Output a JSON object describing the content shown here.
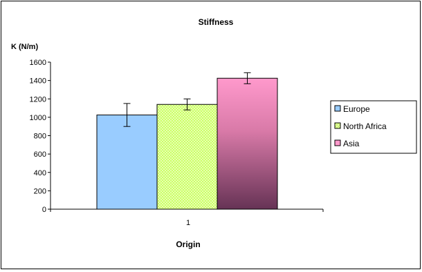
{
  "chart_data": {
    "type": "bar",
    "title": "Stiffness",
    "ylabel": "K (N/m)",
    "xlabel": "Origin",
    "categories": [
      "1"
    ],
    "ylim": [
      0,
      1600
    ],
    "yticks": [
      "0",
      "200",
      "400",
      "600",
      "800",
      "1000",
      "1200",
      "1400",
      "1600"
    ],
    "grid": false,
    "legend_position": "right",
    "series": [
      {
        "name": "Europe",
        "values": [
          1025
        ],
        "error": [
          125
        ],
        "color": "#99ccff"
      },
      {
        "name": "North Africa",
        "values": [
          1140
        ],
        "error": [
          60
        ],
        "color": "#ccff66"
      },
      {
        "name": "Asia",
        "values": [
          1425
        ],
        "error": [
          60
        ],
        "color": "#ff99cc"
      }
    ]
  }
}
